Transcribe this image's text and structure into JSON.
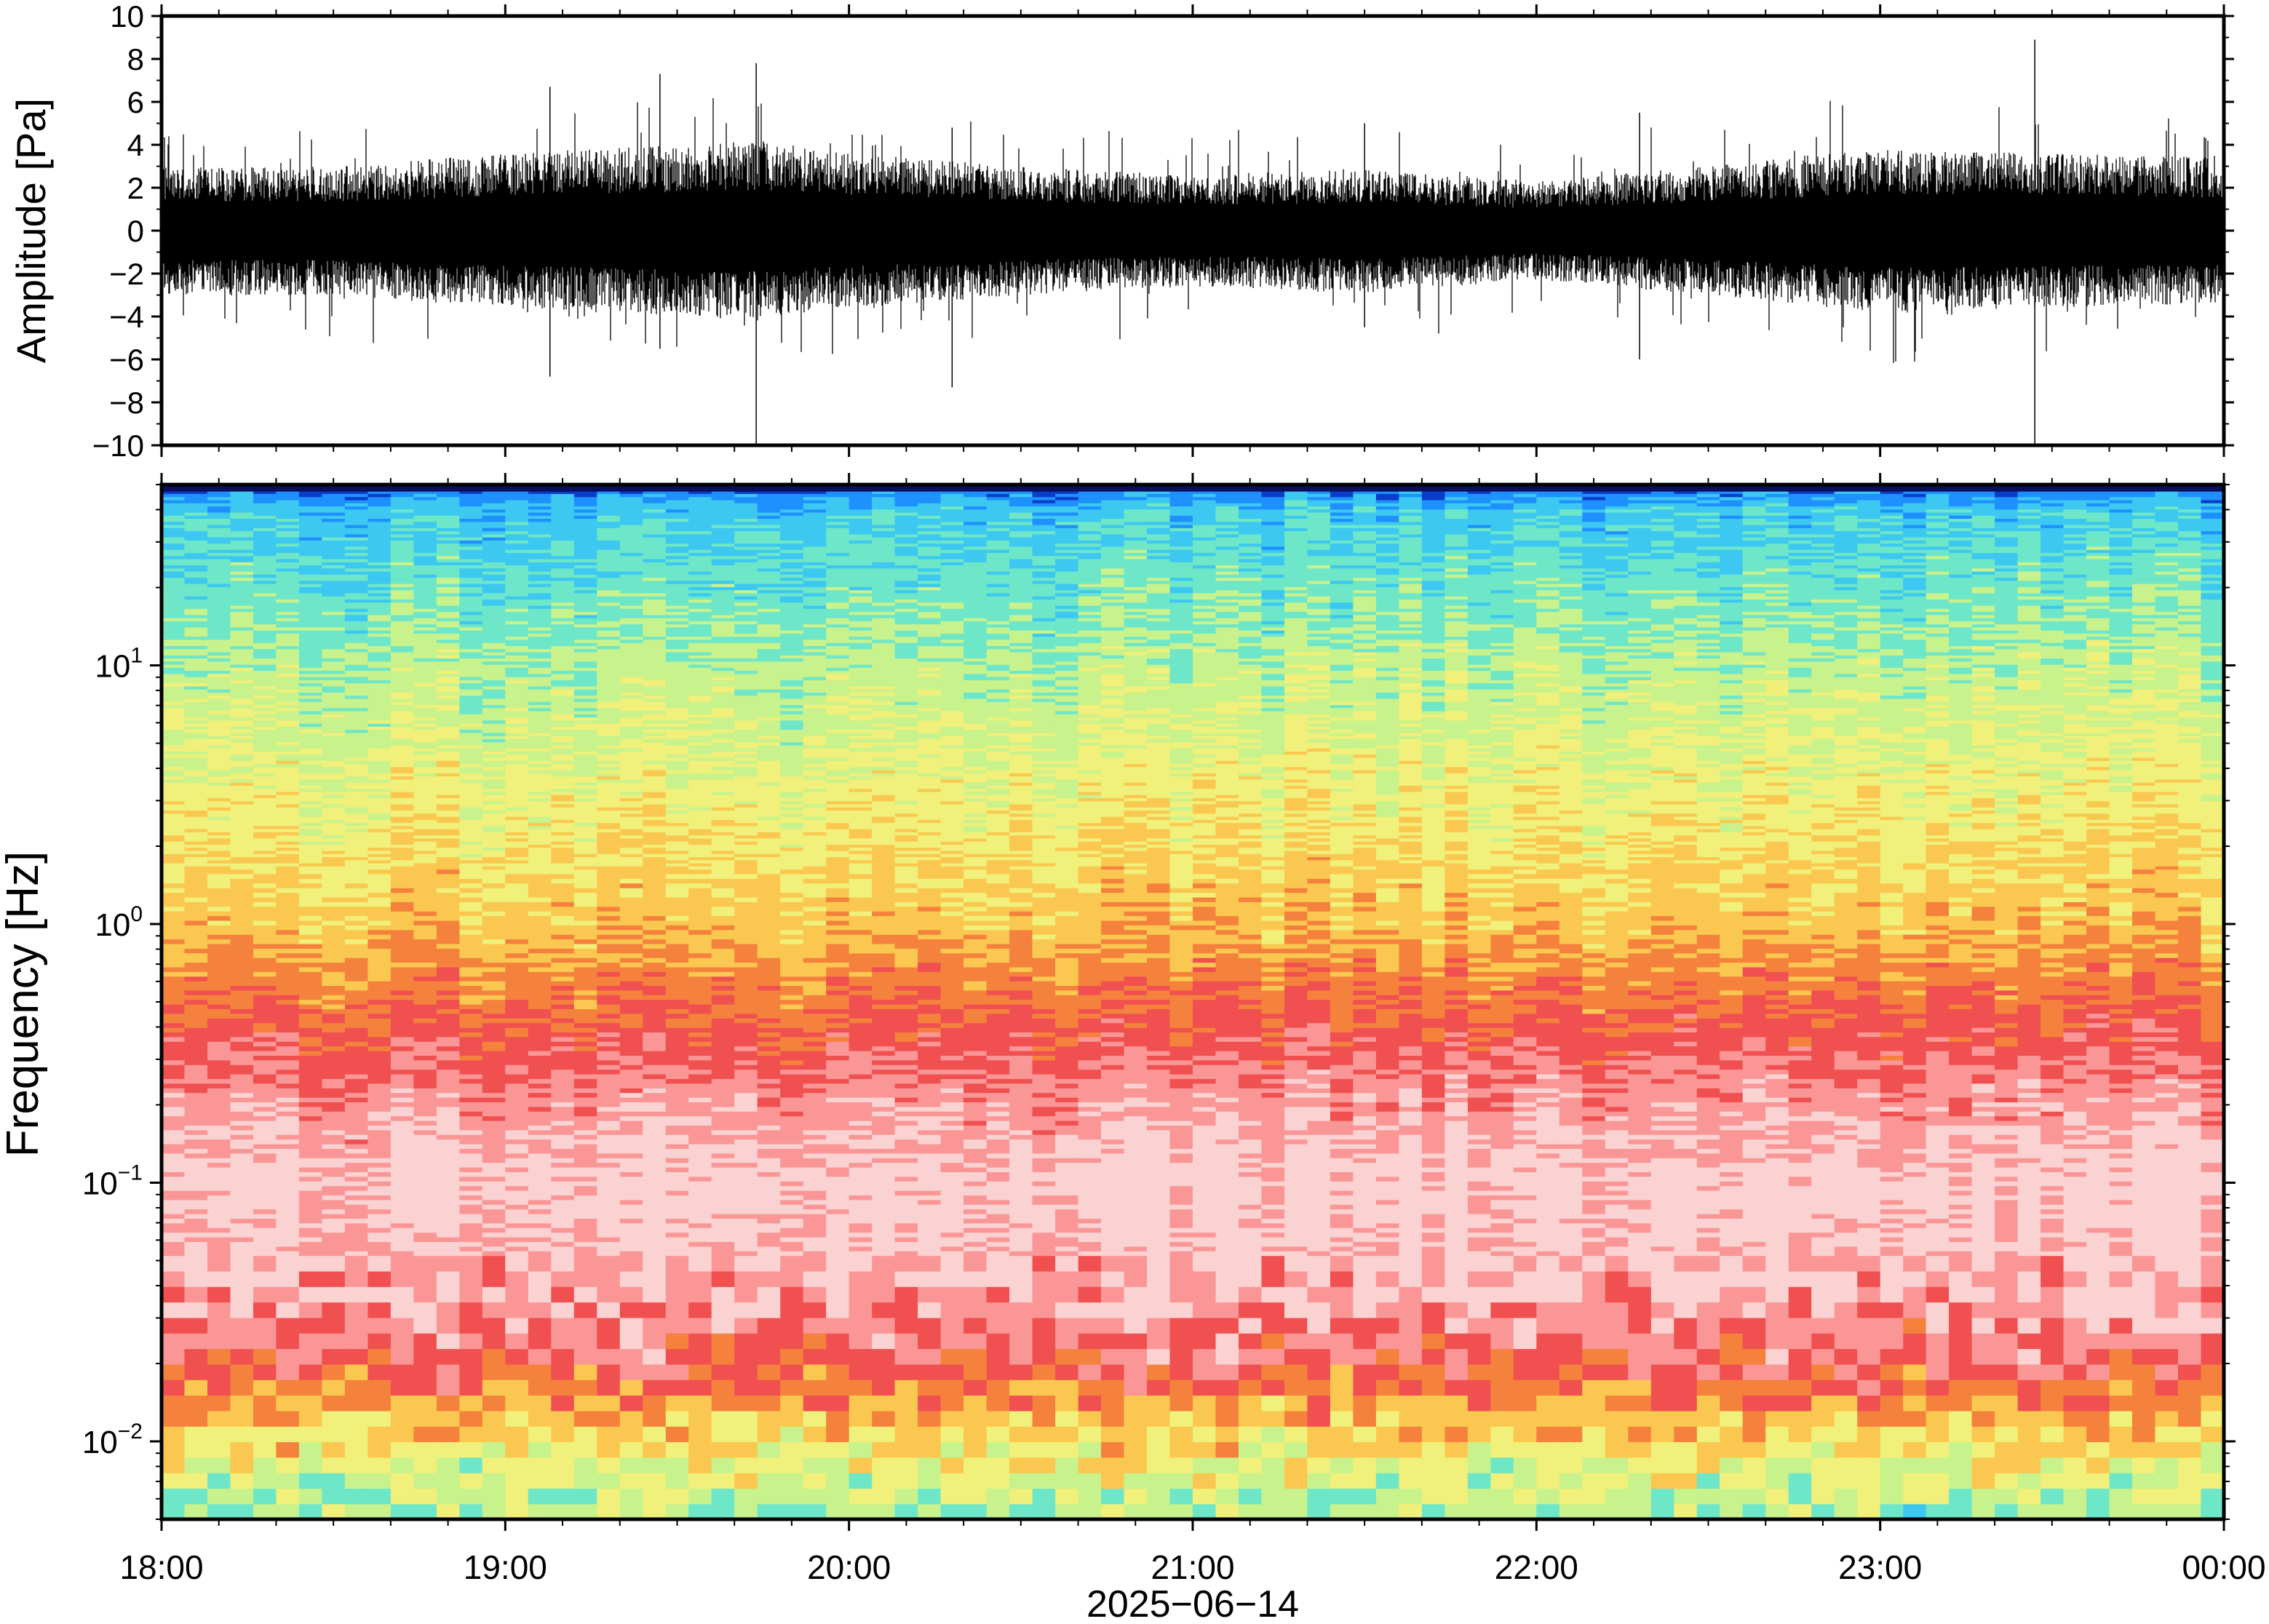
{
  "chart_data": [
    {
      "type": "line",
      "panel": "waveform",
      "ylabel": "Amplitude [Pa]",
      "ylim": [
        -10,
        10
      ],
      "yticks": [
        -10,
        -8,
        -6,
        -4,
        -2,
        0,
        2,
        4,
        6,
        8,
        10
      ],
      "ytick_labels": [
        "−10",
        "−8",
        "−6",
        "−4",
        "−2",
        "0",
        "2",
        "4",
        "6",
        "8",
        "10"
      ],
      "x_range_hours": [
        18,
        24
      ],
      "line_color": "#000000",
      "envelope": {
        "hours": [
          18.0,
          18.5,
          19.0,
          19.5,
          19.75,
          20.0,
          20.5,
          21.0,
          21.5,
          22.0,
          22.5,
          23.0,
          23.5,
          24.0
        ],
        "amplitude": [
          3.0,
          3.0,
          3.6,
          4.0,
          4.2,
          3.6,
          3.0,
          2.6,
          2.9,
          2.3,
          3.0,
          3.8,
          3.6,
          3.4
        ]
      },
      "spikes": [
        {
          "hour": 19.73,
          "min": -10,
          "max": 7.8
        },
        {
          "hour": 19.13,
          "min": -6.8,
          "max": 6.7
        },
        {
          "hour": 23.45,
          "min": -10,
          "max": 8.9
        },
        {
          "hour": 20.3,
          "min": -7.3,
          "max": 4.8
        },
        {
          "hour": 19.45,
          "min": -5.5,
          "max": 7.3
        },
        {
          "hour": 21.5,
          "min": -4.5,
          "max": 5.0
        },
        {
          "hour": 22.3,
          "min": -6.0,
          "max": 5.5
        }
      ]
    },
    {
      "type": "heatmap",
      "panel": "spectrogram",
      "ylabel": "Frequency [Hz]",
      "xlabel": "2025−06−14",
      "y_scale": "log",
      "ylim": [
        0.005,
        50
      ],
      "yticks": [
        {
          "value": 0.01,
          "base": "10",
          "exp": "−2"
        },
        {
          "value": 0.1,
          "base": "10",
          "exp": "−1"
        },
        {
          "value": 1,
          "base": "10",
          "exp": "0"
        },
        {
          "value": 10,
          "base": "10",
          "exp": "1"
        }
      ],
      "xticks": [
        {
          "hour": 18,
          "label": "18:00"
        },
        {
          "hour": 19,
          "label": "19:00"
        },
        {
          "hour": 20,
          "label": "20:00"
        },
        {
          "hour": 21,
          "label": "21:00"
        },
        {
          "hour": 22,
          "label": "22:00"
        },
        {
          "hour": 23,
          "label": "23:00"
        },
        {
          "hour": 24,
          "label": "00:00"
        }
      ],
      "time_bins": 90,
      "colormap": [
        "#08105e",
        "#0a3cc8",
        "#1e90ff",
        "#3cc8f0",
        "#6ee6c8",
        "#c8f28c",
        "#f0f07a",
        "#fac850",
        "#f5823c",
        "#f05050",
        "#fa9696",
        "#fad2d2"
      ],
      "power_profile": {
        "log10_freq": [
          -2.3,
          -2.1,
          -1.9,
          -1.7,
          -1.5,
          -1.3,
          -1.0,
          -0.7,
          -0.4,
          -0.2,
          0.0,
          0.3,
          0.6,
          1.0,
          1.3,
          1.6,
          1.68,
          1.7
        ],
        "level": [
          0.42,
          0.52,
          0.66,
          0.82,
          0.92,
          0.96,
          1.0,
          0.92,
          0.8,
          0.72,
          0.64,
          0.58,
          0.52,
          0.44,
          0.36,
          0.28,
          0.15,
          0.0
        ]
      }
    }
  ]
}
